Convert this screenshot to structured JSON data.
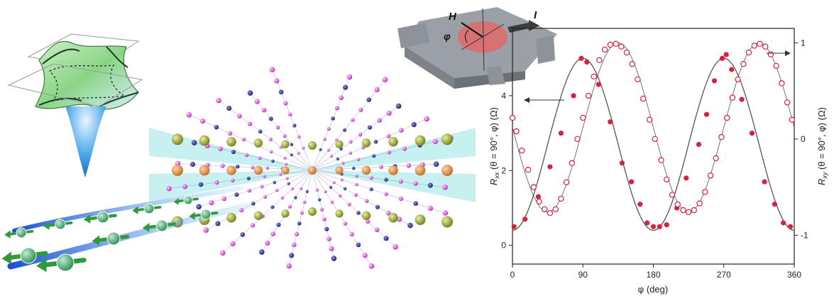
{
  "colors": {
    "data": "#d6213f",
    "fit": "#555555",
    "axis": "#222222",
    "fermi_green": "#7fd07a",
    "fermi_blue": "#2f8fd8",
    "atom_magenta": "#d63ad6",
    "atom_navy": "#27277f",
    "atom_olive": "#8c9a2a",
    "atom_orange": "#d98a3a",
    "plane_cyan": "#5fd8d8",
    "device_gray": "#9aa0a5",
    "device_disc": "#e06a6a",
    "spin_green": "#2f9a3a"
  },
  "device": {
    "field_label": "H",
    "current_label": "I",
    "angle_label": "φ"
  },
  "chart_data": {
    "type": "scatter",
    "xlabel": "φ (deg)",
    "ylabel_left_parts": [
      "R",
      "xx",
      " (θ = 90°, φ) (Ω)"
    ],
    "ylabel_right_parts": [
      "R",
      "xy",
      " (θ = 90°, φ) (Ω)"
    ],
    "xlim": [
      0,
      360
    ],
    "ylim_left": [
      -0.5,
      5.8
    ],
    "ylim_right": [
      -1.3,
      1.15
    ],
    "xticks": [
      "0",
      "90",
      "180",
      "270",
      "360"
    ],
    "xtick_values": [
      0,
      90,
      180,
      270,
      360
    ],
    "yticks_left": [
      "0",
      "2",
      "4"
    ],
    "ytick_values_left": [
      0,
      2,
      4
    ],
    "yticks_right": [
      "-1",
      "0",
      "1"
    ],
    "ytick_values_right": [
      -1,
      0,
      1
    ],
    "grid": false,
    "series": [
      {
        "axis": "left",
        "style": "filled",
        "points": [
          [
            2,
            0.5
          ],
          [
            16,
            0.7
          ],
          [
            33,
            1.3
          ],
          [
            48,
            2.1
          ],
          [
            62,
            3.0
          ],
          [
            78,
            4.0
          ],
          [
            88,
            5.0
          ],
          [
            95,
            4.9
          ],
          [
            110,
            4.3
          ],
          [
            125,
            3.3
          ],
          [
            140,
            2.2
          ],
          [
            152,
            1.7
          ],
          [
            163,
            1.1
          ],
          [
            172,
            0.6
          ],
          [
            180,
            0.5
          ],
          [
            188,
            0.5
          ],
          [
            197,
            0.55
          ],
          [
            210,
            1.0
          ],
          [
            222,
            1.8
          ],
          [
            238,
            2.7
          ],
          [
            248,
            3.5
          ],
          [
            258,
            4.4
          ],
          [
            268,
            5.0
          ],
          [
            273,
            5.1
          ],
          [
            280,
            4.7
          ],
          [
            293,
            3.9
          ],
          [
            306,
            3.0
          ],
          [
            322,
            1.7
          ],
          [
            335,
            1.1
          ],
          [
            346,
            0.6
          ],
          [
            355,
            0.5
          ]
        ]
      },
      {
        "axis": "right",
        "style": "open",
        "points": [
          [
            0,
            0.22
          ],
          [
            5,
            0.08
          ],
          [
            12,
            -0.12
          ],
          [
            20,
            -0.32
          ],
          [
            27,
            -0.5
          ],
          [
            34,
            -0.65
          ],
          [
            41,
            -0.73
          ],
          [
            48,
            -0.77
          ],
          [
            55,
            -0.73
          ],
          [
            62,
            -0.62
          ],
          [
            69,
            -0.45
          ],
          [
            76,
            -0.25
          ],
          [
            83,
            0.0
          ],
          [
            90,
            0.22
          ],
          [
            97,
            0.45
          ],
          [
            104,
            0.65
          ],
          [
            111,
            0.82
          ],
          [
            118,
            0.93
          ],
          [
            125,
            0.98
          ],
          [
            132,
            0.99
          ],
          [
            139,
            0.96
          ],
          [
            146,
            0.9
          ],
          [
            153,
            0.78
          ],
          [
            160,
            0.62
          ],
          [
            167,
            0.42
          ],
          [
            175,
            0.2
          ],
          [
            182,
            0.0
          ],
          [
            190,
            -0.22
          ],
          [
            197,
            -0.42
          ],
          [
            204,
            -0.58
          ],
          [
            211,
            -0.68
          ],
          [
            218,
            -0.74
          ],
          [
            225,
            -0.76
          ],
          [
            232,
            -0.74
          ],
          [
            239,
            -0.67
          ],
          [
            246,
            -0.55
          ],
          [
            253,
            -0.38
          ],
          [
            260,
            -0.2
          ],
          [
            267,
            0.02
          ],
          [
            274,
            0.22
          ],
          [
            281,
            0.43
          ],
          [
            288,
            0.62
          ],
          [
            295,
            0.78
          ],
          [
            302,
            0.9
          ],
          [
            309,
            0.97
          ],
          [
            316,
            0.99
          ],
          [
            323,
            0.96
          ],
          [
            330,
            0.88
          ],
          [
            337,
            0.76
          ],
          [
            344,
            0.58
          ],
          [
            351,
            0.38
          ],
          [
            357,
            0.2
          ]
        ]
      }
    ],
    "fits": [
      {
        "axis": "left",
        "center": 2.7,
        "amplitude": 2.3,
        "phase_deg": 90
      },
      {
        "axis": "right",
        "center": 0.12,
        "amplitude": 0.88,
        "phase_deg": 135
      }
    ]
  }
}
